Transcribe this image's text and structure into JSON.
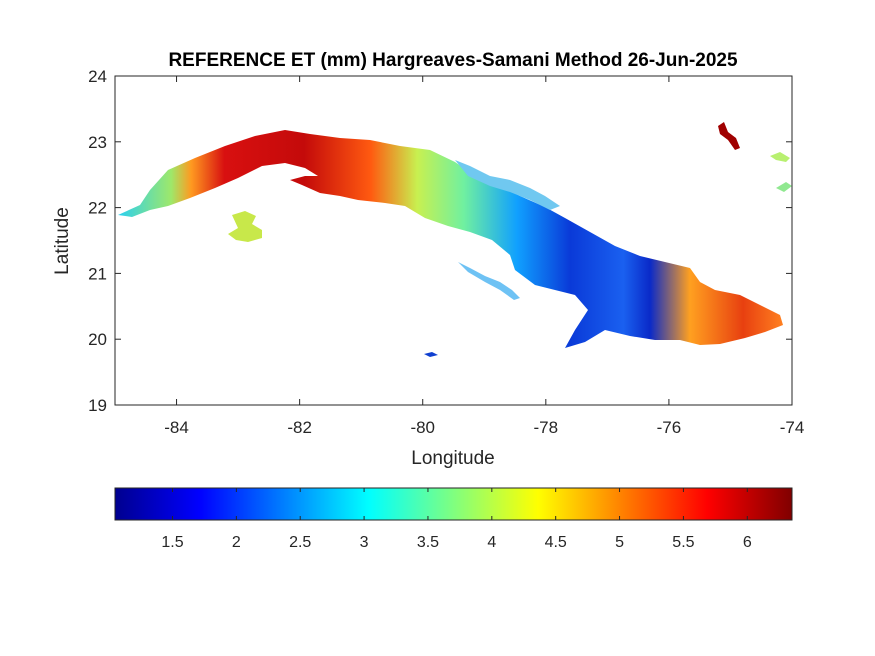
{
  "figure": {
    "title": "REFERENCE ET (mm) Hargreaves-Samani Method  26-Jun-2025"
  },
  "map": {
    "xlabel": "Longitude",
    "ylabel": "Latitude",
    "xlim": [
      -85,
      -74
    ],
    "ylim": [
      19,
      24
    ],
    "xticks": [
      -84,
      -82,
      -80,
      -78,
      -76,
      -74
    ],
    "yticks": [
      19,
      20,
      21,
      22,
      23,
      24
    ],
    "xtick_labels": [
      "-84",
      "-82",
      "-80",
      "-78",
      "-76",
      "-74"
    ],
    "ytick_labels": [
      "19",
      "20",
      "21",
      "22",
      "23",
      "24"
    ]
  },
  "colorbar": {
    "colormap": "jet",
    "range": [
      1.05,
      6.35
    ],
    "ticks": [
      1.5,
      2,
      2.5,
      3,
      3.5,
      4,
      4.5,
      5,
      5.5,
      6
    ],
    "tick_labels": [
      "1.5",
      "2",
      "2.5",
      "3",
      "3.5",
      "4",
      "4.5",
      "5",
      "5.5",
      "6"
    ],
    "colors": [
      "#00008f",
      "#0000ff",
      "#00ffff",
      "#ffff00",
      "#ff0000",
      "#800000"
    ]
  },
  "chart_data": {
    "type": "heatmap",
    "title": "REFERENCE ET (mm) Hargreaves-Samani Method  26-Jun-2025",
    "xlabel": "Longitude",
    "ylabel": "Latitude",
    "xlim": [
      -85,
      -74
    ],
    "ylim": [
      19,
      24
    ],
    "grid": false,
    "colormap": "jet",
    "clim": [
      1.05,
      6.35
    ],
    "regional_values": [
      {
        "lon_range": [
          -85.0,
          -83.6
        ],
        "lat_range": [
          21.8,
          22.6
        ],
        "et_mm": 3.1
      },
      {
        "lon_range": [
          -83.6,
          -83.0
        ],
        "lat_range": [
          22.3,
          22.9
        ],
        "et_mm": 4.8
      },
      {
        "lon_range": [
          -83.0,
          -81.5
        ],
        "lat_range": [
          22.3,
          23.2
        ],
        "et_mm": 5.9
      },
      {
        "lon_range": [
          -81.5,
          -80.3
        ],
        "lat_range": [
          22.0,
          23.1
        ],
        "et_mm": 5.6
      },
      {
        "lon_range": [
          -80.3,
          -79.0
        ],
        "lat_range": [
          21.8,
          22.9
        ],
        "et_mm": 4.0
      },
      {
        "lon_range": [
          -79.0,
          -78.0
        ],
        "lat_range": [
          21.3,
          22.4
        ],
        "et_mm": 3.1
      },
      {
        "lon_range": [
          -78.0,
          -76.8
        ],
        "lat_range": [
          20.5,
          21.9
        ],
        "et_mm": 2.1
      },
      {
        "lon_range": [
          -76.8,
          -75.8
        ],
        "lat_range": [
          20.0,
          20.9
        ],
        "et_mm": 1.6
      },
      {
        "lon_range": [
          -75.8,
          -74.2
        ],
        "lat_range": [
          19.8,
          20.8
        ],
        "et_mm": 5.0
      },
      {
        "lon_range": [
          -83.2,
          -82.5
        ],
        "lat_range": [
          21.4,
          21.9
        ],
        "et_mm": 3.9
      }
    ]
  }
}
